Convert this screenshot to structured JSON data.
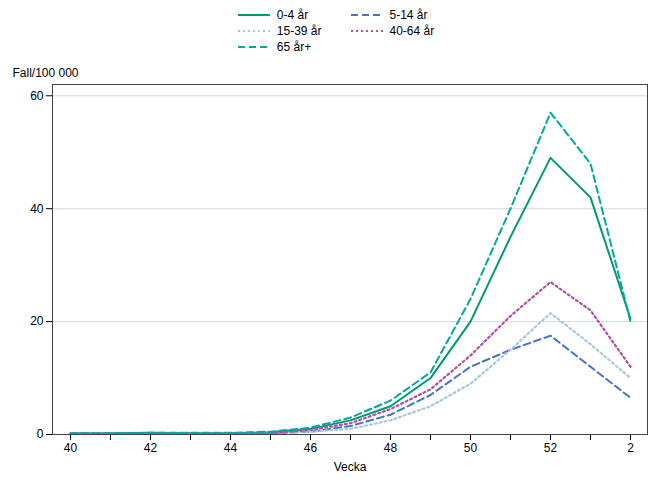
{
  "chart_data": {
    "type": "line",
    "xlabel": "Vecka",
    "ylabel": "Fall/100 000",
    "categories": [
      "40",
      null,
      "42",
      null,
      "44",
      null,
      "46",
      null,
      "48",
      null,
      "50",
      null,
      "52",
      null,
      "2"
    ],
    "ylim": [
      0,
      62
    ],
    "yticks": [
      0,
      20,
      40,
      60
    ],
    "grid": true,
    "legend": "top",
    "series": [
      {
        "name": "0-4 år",
        "color": "#009970",
        "line_style": "solid",
        "values": [
          0.2,
          0.2,
          0.3,
          0.2,
          0.2,
          0.4,
          1.0,
          2.5,
          5.0,
          10.0,
          20.0,
          35.0,
          49.0,
          42.0,
          20.5
        ]
      },
      {
        "name": "5-14 år",
        "color": "#4472c4",
        "line_style": "dashed",
        "values": [
          0.1,
          0.1,
          0.1,
          0.1,
          0.1,
          0.2,
          0.5,
          1.5,
          3.5,
          7.0,
          12.0,
          15.0,
          17.5,
          12.0,
          6.5
        ]
      },
      {
        "name": "15-39 år",
        "color": "#a8c8e0",
        "line_style": "dotted",
        "values": [
          0.1,
          0.1,
          0.1,
          0.1,
          0.1,
          0.2,
          0.5,
          1.0,
          2.5,
          5.0,
          9.0,
          15.0,
          21.5,
          16.0,
          10.0
        ]
      },
      {
        "name": "40-64 år",
        "color": "#b050a0",
        "line_style": "dotted",
        "values": [
          0.1,
          0.1,
          0.1,
          0.1,
          0.1,
          0.2,
          0.8,
          2.0,
          4.5,
          8.0,
          14.0,
          21.0,
          27.0,
          22.0,
          12.0
        ]
      },
      {
        "name": "65 år+",
        "color": "#00a8a0",
        "line_style": "dashed",
        "values": [
          0.2,
          0.2,
          0.3,
          0.3,
          0.3,
          0.5,
          1.2,
          3.0,
          6.0,
          11.0,
          24.0,
          40.0,
          57.0,
          48.0,
          20.0
        ]
      }
    ]
  }
}
